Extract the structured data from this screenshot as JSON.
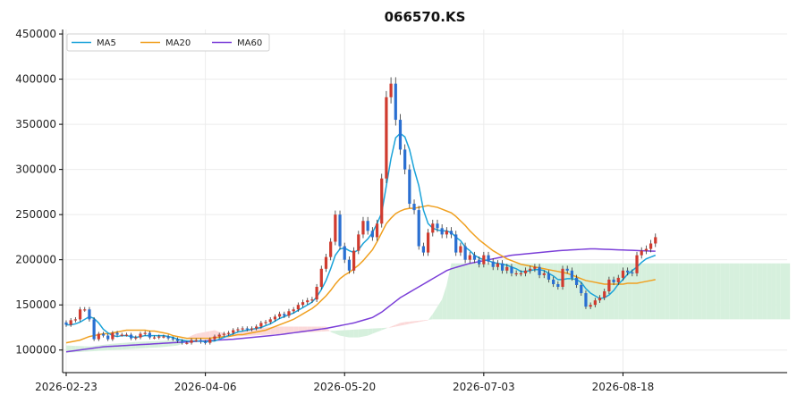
{
  "chart_data": {
    "type": "candlestick",
    "title": "066570.KS",
    "ylim": [
      75000,
      455000
    ],
    "yticks": [
      100000,
      150000,
      200000,
      250000,
      300000,
      350000,
      400000,
      450000
    ],
    "xticks": [
      "2026-02-23",
      "2026-04-06",
      "2026-05-20",
      "2026-07-03",
      "2026-08-18"
    ],
    "legend": {
      "position": "top-left",
      "entries": [
        {
          "name": "MA5",
          "color": "#1ba3d9"
        },
        {
          "name": "MA20",
          "color": "#f0a020"
        },
        {
          "name": "MA60",
          "color": "#7b3fd8"
        }
      ]
    },
    "grid": true,
    "colors": {
      "up": "#d03b2f",
      "down": "#2a6fd1",
      "cloud_up": "#d6f0dd",
      "cloud_down": "#fbd9d9"
    },
    "candle_count": 128,
    "future_count": 28,
    "closes": [
      128000,
      133000,
      134000,
      145000,
      145000,
      134000,
      112000,
      118000,
      116000,
      112000,
      119000,
      117000,
      117000,
      117000,
      113000,
      114000,
      118000,
      119000,
      114000,
      114000,
      115000,
      115000,
      113000,
      112000,
      110000,
      108000,
      108000,
      111000,
      111000,
      109000,
      108000,
      112000,
      115000,
      117000,
      118000,
      119000,
      122000,
      123000,
      124000,
      123000,
      124000,
      126000,
      130000,
      131000,
      134000,
      137000,
      140000,
      138000,
      143000,
      145000,
      150000,
      153000,
      155000,
      156000,
      170000,
      190000,
      203000,
      220000,
      250000,
      215000,
      200000,
      188000,
      210000,
      228000,
      243000,
      232000,
      225000,
      240000,
      290000,
      380000,
      395000,
      355000,
      322000,
      300000,
      262000,
      255000,
      215000,
      208000,
      230000,
      240000,
      235000,
      228000,
      232000,
      228000,
      208000,
      215000,
      200000,
      205000,
      200000,
      195000,
      205000,
      198000,
      192000,
      196000,
      188000,
      192000,
      185000,
      185000,
      185000,
      188000,
      190000,
      192000,
      183000,
      185000,
      178000,
      173000,
      170000,
      190000,
      188000,
      180000,
      172000,
      163000,
      148000,
      150000,
      155000,
      158000,
      165000,
      178000,
      175000,
      180000,
      188000,
      186000,
      185000,
      205000,
      210000,
      212000,
      218000,
      225000
    ],
    "ma5": [
      128000,
      128000,
      129000,
      131000,
      134000,
      137000,
      135000,
      130000,
      123000,
      119000,
      116000,
      115000,
      116000,
      116000,
      115000,
      114000,
      115000,
      116000,
      116000,
      116000,
      116000,
      116000,
      115000,
      114000,
      112000,
      111000,
      110000,
      110000,
      110000,
      110000,
      109000,
      110000,
      110000,
      112000,
      114000,
      116000,
      118000,
      120000,
      121000,
      122000,
      123000,
      124000,
      125000,
      127000,
      129000,
      132000,
      135000,
      137000,
      139000,
      141000,
      144000,
      147000,
      150000,
      153000,
      159000,
      167000,
      177000,
      190000,
      205000,
      212000,
      213000,
      210000,
      208000,
      211000,
      218000,
      223000,
      230000,
      240000,
      252000,
      282000,
      312000,
      335000,
      340000,
      336000,
      322000,
      300000,
      282000,
      255000,
      240000,
      235000,
      233000,
      232000,
      232000,
      230000,
      225000,
      221000,
      214000,
      210000,
      205000,
      202000,
      200000,
      199000,
      197000,
      196000,
      195000,
      194000,
      192000,
      190000,
      187000,
      187000,
      188000,
      189000,
      189000,
      188000,
      185000,
      182000,
      178000,
      178000,
      179000,
      179000,
      178000,
      175000,
      168000,
      163000,
      160000,
      157000,
      158000,
      161000,
      166000,
      173000,
      178000,
      184000,
      188000,
      192000,
      197000,
      201000,
      203000,
      205000
    ],
    "ma20": [
      108000,
      109000,
      110000,
      111000,
      113000,
      115000,
      116000,
      117000,
      118000,
      118000,
      119000,
      120000,
      121000,
      122000,
      122000,
      122000,
      122000,
      122000,
      121000,
      121000,
      120000,
      119000,
      118000,
      116000,
      115000,
      114000,
      113000,
      113000,
      113000,
      113000,
      113000,
      113000,
      114000,
      114000,
      115000,
      115000,
      116000,
      117000,
      117000,
      118000,
      119000,
      120000,
      121000,
      122000,
      124000,
      126000,
      128000,
      130000,
      132000,
      134000,
      137000,
      140000,
      143000,
      146000,
      150000,
      155000,
      160000,
      166000,
      173000,
      179000,
      183000,
      186000,
      190000,
      194000,
      199000,
      205000,
      211000,
      220000,
      230000,
      240000,
      246000,
      251000,
      254000,
      256000,
      257000,
      257000,
      258000,
      259000,
      260000,
      259000,
      258000,
      256000,
      254000,
      252000,
      248000,
      243000,
      238000,
      232000,
      227000,
      222000,
      218000,
      214000,
      210000,
      207000,
      204000,
      201000,
      199000,
      197000,
      195000,
      194000,
      193000,
      192000,
      191000,
      190000,
      189000,
      188000,
      187000,
      186000,
      185000,
      183000,
      181000,
      179000,
      177000,
      176000,
      175000,
      174000,
      173000,
      173000,
      173000,
      173000,
      173000,
      174000,
      174000,
      174000,
      175000,
      176000,
      177000,
      178000
    ],
    "ma60": [
      98000,
      98700,
      99400,
      100100,
      100800,
      101500,
      102200,
      102900,
      103600,
      103900,
      104200,
      104500,
      104800,
      105100,
      105400,
      105700,
      106000,
      106300,
      106600,
      106900,
      107200,
      107500,
      107800,
      108100,
      108400,
      108700,
      109000,
      109300,
      109600,
      109900,
      110200,
      110500,
      110800,
      111100,
      111400,
      111700,
      112000,
      112500,
      113000,
      113500,
      114000,
      114500,
      115000,
      115500,
      116000,
      116500,
      117000,
      117700,
      118400,
      119100,
      119800,
      120500,
      121200,
      121900,
      122600,
      123300,
      124000,
      125000,
      126000,
      127000,
      128000,
      129000,
      130000,
      131500,
      133000,
      134500,
      136000,
      139000,
      142000,
      146000,
      150000,
      154000,
      158000,
      161000,
      164000,
      167000,
      170000,
      173000,
      176000,
      179000,
      182000,
      185000,
      188000,
      190000,
      191500,
      193000,
      194500,
      196000,
      197000,
      198000,
      199000,
      200000,
      201000,
      202000,
      203000,
      204000,
      205000,
      205500,
      206000,
      206500,
      207000,
      207500,
      208000,
      208500,
      209000,
      209500,
      210000,
      210300,
      210600,
      210900,
      211200,
      211500,
      211800,
      212000,
      212000,
      211800,
      211600,
      211400,
      211200,
      211000,
      210800,
      210600,
      210400,
      210200,
      210000,
      209800,
      209600,
      209400
    ],
    "span_a": [
      105000,
      104800,
      104600,
      104400,
      104200,
      104000,
      104600,
      105200,
      105800,
      106400,
      107000,
      107400,
      107800,
      108200,
      108600,
      109000,
      109200,
      109400,
      109600,
      109800,
      110000,
      110300,
      110600,
      110900,
      111200,
      111500,
      111800,
      112100,
      112400,
      112700,
      113000,
      113300,
      113600,
      113900,
      114200,
      114500,
      114800,
      115100,
      115400,
      115700,
      116000,
      116300,
      116600,
      116900,
      117200,
      117500,
      117800,
      118100,
      118400,
      118700,
      119000,
      119300,
      119600,
      119900,
      120200,
      120500,
      120800,
      121100,
      121400,
      121700,
      122000,
      122300,
      122600,
      122900,
      123200,
      123500,
      123800,
      124100,
      124400,
      124700,
      125000,
      126000,
      127000,
      128000,
      129000,
      130000,
      131000,
      132000,
      133000,
      140000,
      148000,
      156000,
      172000,
      196000,
      196000,
      196000,
      196000,
      196000,
      196000,
      196000,
      196000,
      196000,
      196000,
      196000,
      196000,
      196000,
      196000,
      196000,
      196000,
      196000,
      196000,
      196000,
      196000,
      196000,
      196000,
      196000,
      196000,
      196000,
      196000,
      196000,
      196000,
      196000,
      196000,
      196000,
      196000,
      196000,
      196000,
      196000,
      196000,
      196000,
      196000,
      196000,
      196000,
      196000,
      196000,
      196000,
      196000,
      196000,
      196000,
      196000,
      196000,
      196000,
      196000,
      196000,
      196000,
      196000,
      196000,
      196000,
      196000,
      196000,
      196000,
      196000,
      196000,
      196000,
      196000,
      196000,
      196000,
      196000,
      196000,
      196000,
      196000,
      196000,
      196000,
      196000,
      196000,
      196000,
      196000
    ],
    "span_b": [
      97000,
      97300,
      97600,
      97900,
      98200,
      98500,
      98800,
      99100,
      99400,
      99700,
      100000,
      100300,
      100600,
      100900,
      101200,
      101500,
      101800,
      102100,
      102400,
      102700,
      103000,
      103500,
      104000,
      104500,
      105000,
      107000,
      113000,
      116000,
      118000,
      119000,
      120000,
      121000,
      122000,
      120000,
      119000,
      118000,
      117000,
      118000,
      120000,
      122000,
      123000,
      124000,
      124500,
      125000,
      125500,
      126000,
      126000,
      126000,
      126000,
      126000,
      126000,
      126000,
      126000,
      126000,
      126000,
      126000,
      126000,
      120000,
      118000,
      116000,
      115000,
      114000,
      114000,
      114000,
      115000,
      116000,
      118000,
      120000,
      122000,
      124000,
      126000,
      128000,
      130000,
      131000,
      131500,
      132000,
      132500,
      133000,
      133500,
      134000,
      134000,
      134000,
      134000,
      134000,
      134000,
      134000,
      134000,
      134000,
      134000,
      134000,
      134000,
      134000,
      134000,
      134000,
      134000,
      134000,
      134000,
      134000,
      134000,
      134000,
      134000,
      134000,
      134000,
      134000,
      134000,
      134000,
      134000,
      134000,
      134000,
      134000,
      134000,
      134000,
      134000,
      134000,
      134000,
      134000,
      134000,
      134000,
      134000,
      134000,
      134000,
      134000,
      134000,
      134000,
      134000,
      134000,
      134000,
      134000,
      134000,
      134000,
      134000,
      134000,
      134000,
      134000,
      134000,
      134000,
      134000,
      134000,
      134000,
      134000,
      134000,
      134000,
      134000,
      134000,
      134000,
      134000,
      134000,
      134000,
      134000,
      134000,
      134000,
      134000,
      134000,
      134000,
      134000,
      134000,
      134000
    ]
  }
}
